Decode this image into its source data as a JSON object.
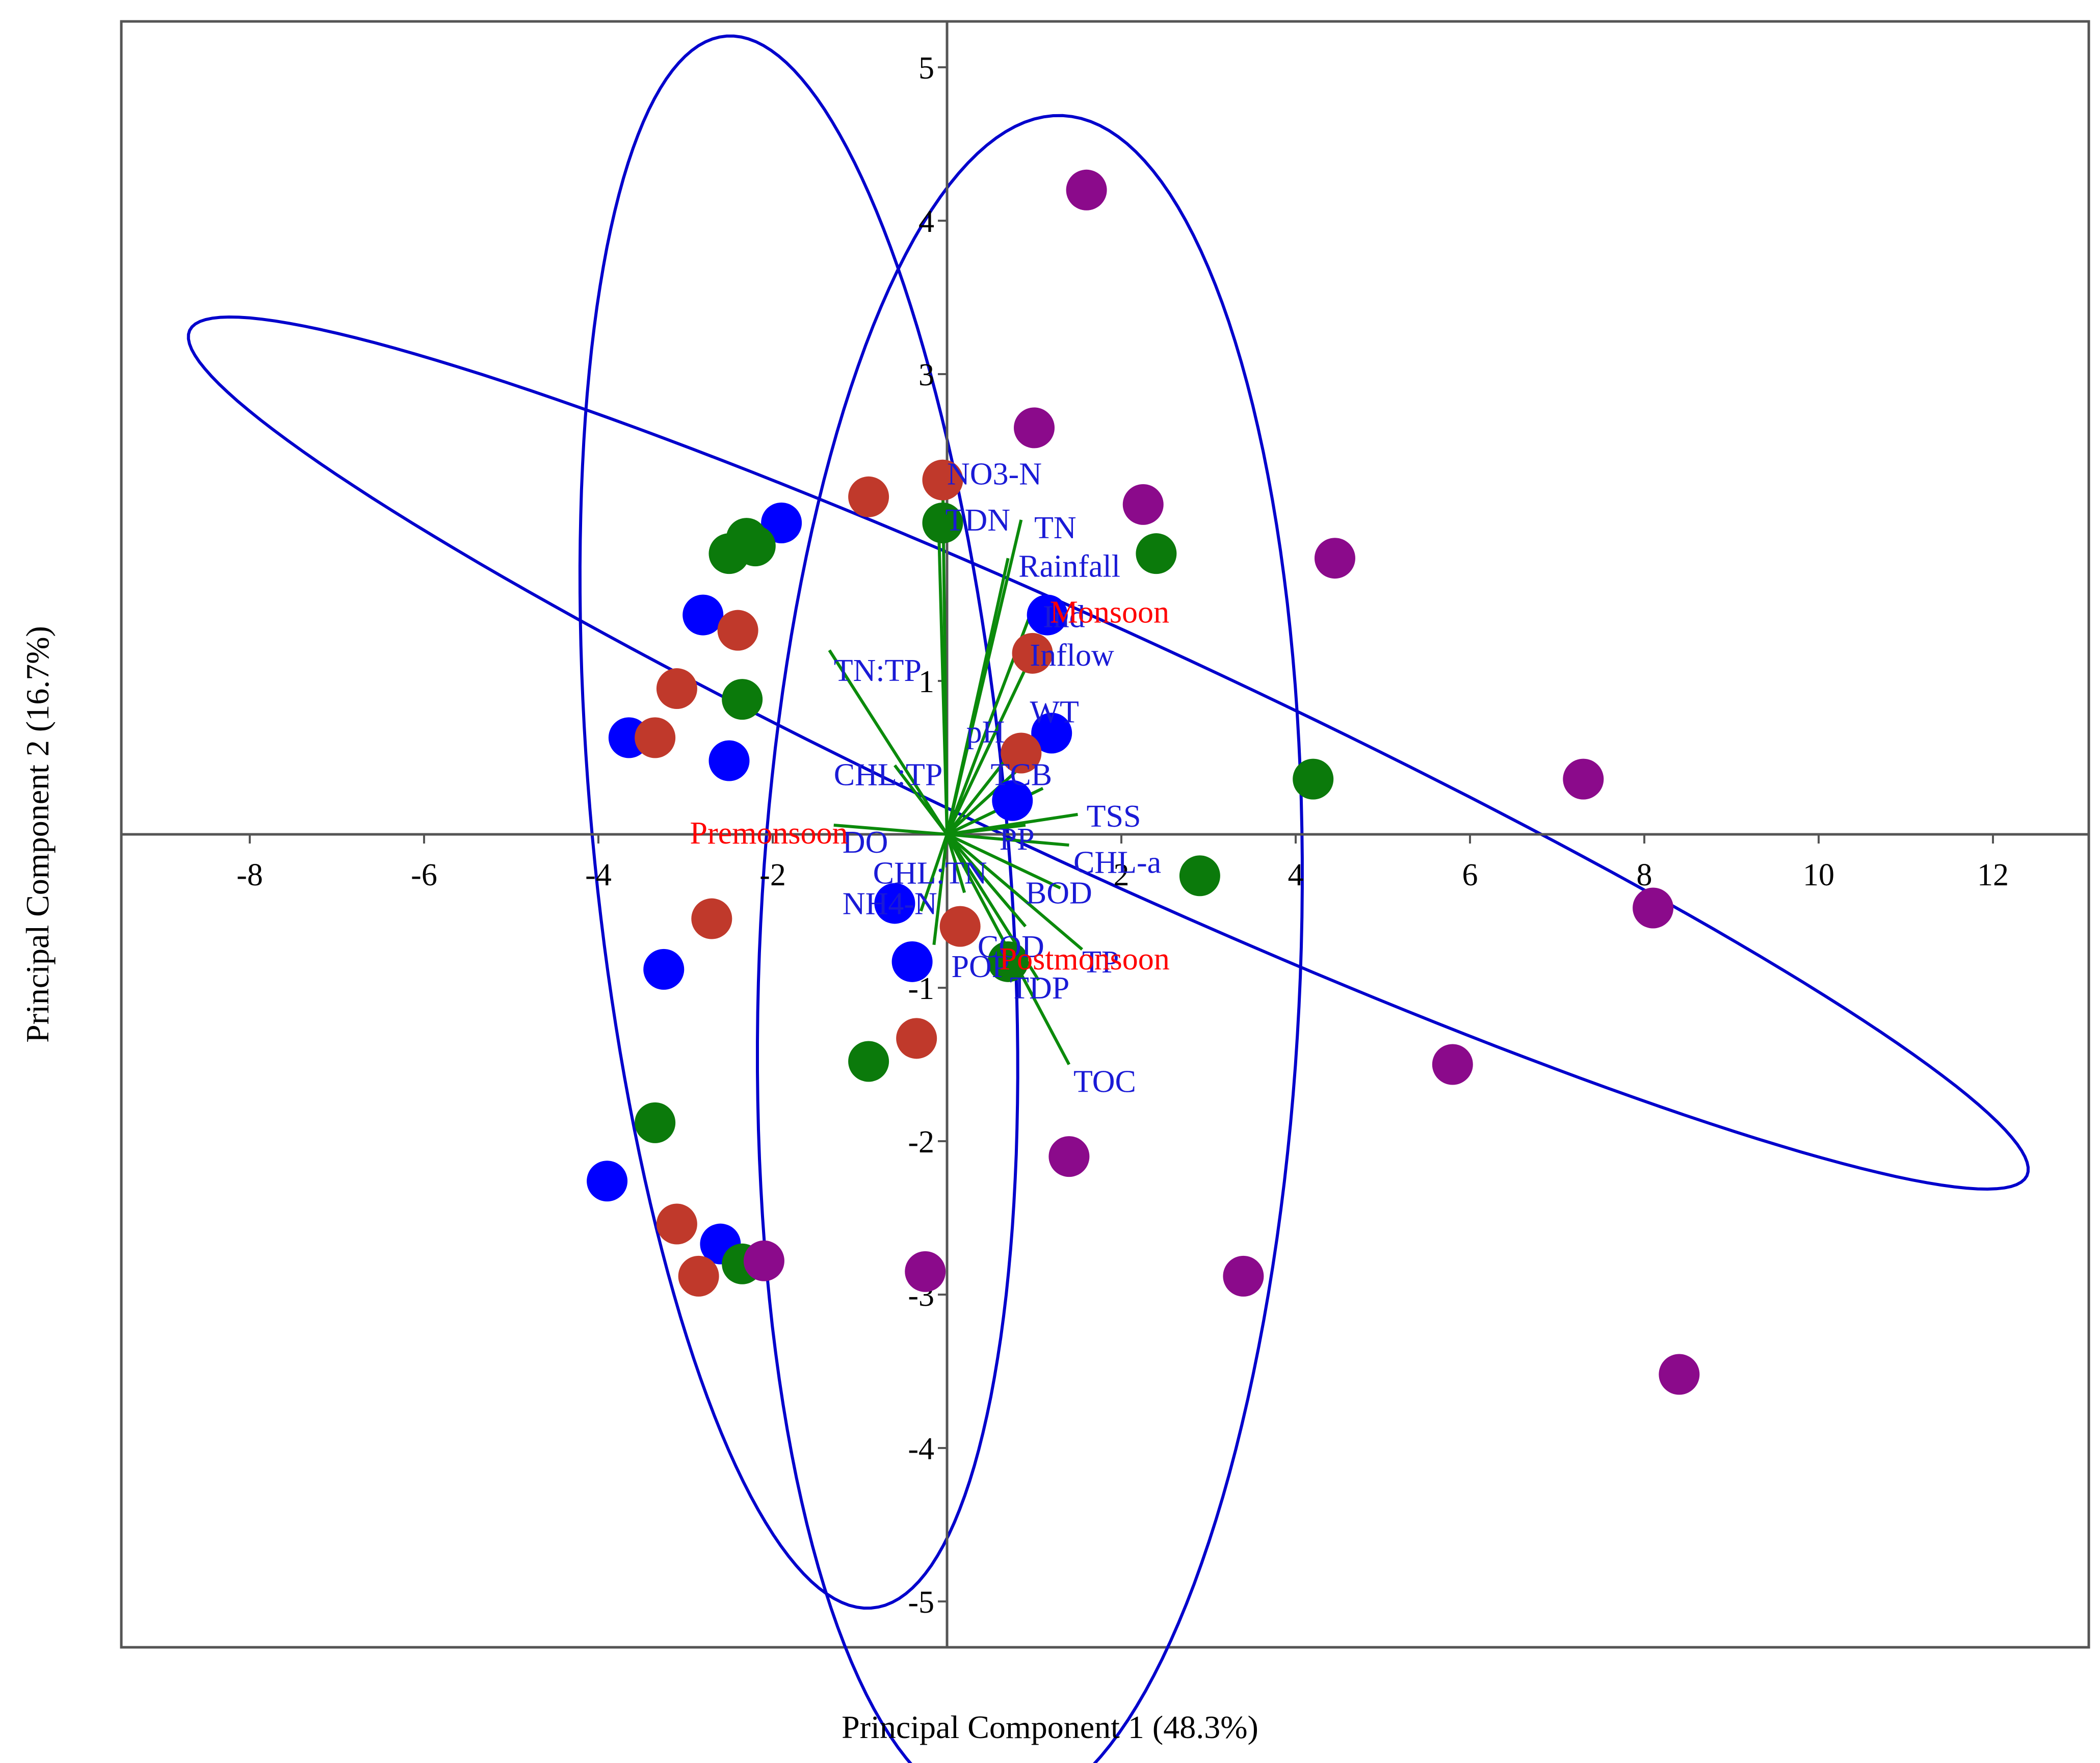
{
  "chart_data": {
    "type": "scatter",
    "title": "",
    "xlabel": "Principal Component 1 (48.3%)",
    "ylabel": "Principal Component 2 (16.7%)",
    "xlim": [
      -9.5,
      13.2
    ],
    "ylim": [
      -5.3,
      5.3
    ],
    "xticks": [
      -8,
      -6,
      -4,
      -2,
      2,
      4,
      6,
      8,
      10,
      12
    ],
    "yticks": [
      5,
      4,
      3,
      1,
      -1,
      -2,
      -3,
      -4,
      -5
    ],
    "grid": false,
    "colors": {
      "blue": "#0000ff",
      "red": "#c0392b",
      "green": "#0b7a0b",
      "purple": "#8b0a8b",
      "loading": "#0b8a0b",
      "ellipse": "#0000cc",
      "variable_label": "#1a1ad6",
      "season_label": "#ff0000"
    },
    "series": [
      {
        "color": "blue",
        "points": [
          [
            -1.9,
            2.03
          ],
          [
            -2.8,
            1.43
          ],
          [
            -3.65,
            0.63
          ],
          [
            -2.5,
            0.48
          ],
          [
            -0.6,
            -0.45
          ],
          [
            -3.25,
            -0.88
          ],
          [
            -0.4,
            -0.83
          ],
          [
            -3.9,
            -2.26
          ],
          [
            -2.6,
            -2.67
          ],
          [
            1.15,
            1.43
          ],
          [
            1.2,
            0.66
          ],
          [
            0.75,
            0.22
          ]
        ]
      },
      {
        "color": "red",
        "points": [
          [
            -0.9,
            2.2
          ],
          [
            -0.05,
            2.31
          ],
          [
            -2.4,
            1.33
          ],
          [
            -3.1,
            0.95
          ],
          [
            -3.35,
            0.63
          ],
          [
            0.98,
            1.18
          ],
          [
            0.85,
            0.53
          ],
          [
            -2.7,
            -0.55
          ],
          [
            0.15,
            -0.6
          ],
          [
            -0.35,
            -1.33
          ],
          [
            -3.1,
            -2.54
          ],
          [
            -2.85,
            -2.88
          ]
        ]
      },
      {
        "color": "green",
        "points": [
          [
            -2.3,
            1.93
          ],
          [
            -2.5,
            1.83
          ],
          [
            -2.2,
            1.88
          ],
          [
            -0.05,
            2.03
          ],
          [
            -2.35,
            0.88
          ],
          [
            2.4,
            1.83
          ],
          [
            4.2,
            0.36
          ],
          [
            2.9,
            -0.27
          ],
          [
            0.7,
            -0.83
          ],
          [
            -0.9,
            -1.48
          ],
          [
            -3.35,
            -1.88
          ],
          [
            -2.35,
            -2.8
          ]
        ]
      },
      {
        "color": "purple",
        "points": [
          [
            1.6,
            4.2
          ],
          [
            1.0,
            2.65
          ],
          [
            2.25,
            2.15
          ],
          [
            4.45,
            1.8
          ],
          [
            7.3,
            0.36
          ],
          [
            8.1,
            -0.48
          ],
          [
            5.8,
            -1.5
          ],
          [
            1.4,
            -2.1
          ],
          [
            3.4,
            -2.88
          ],
          [
            -0.25,
            -2.85
          ],
          [
            -2.1,
            -2.78
          ],
          [
            8.4,
            -3.52
          ]
        ]
      }
    ],
    "loadings": [
      {
        "label": "NO3-N",
        "end": [
          -0.05,
          2.35
        ]
      },
      {
        "label": "TDN",
        "end": [
          -0.1,
          2.1
        ]
      },
      {
        "label": "TN",
        "end": [
          0.85,
          2.05
        ]
      },
      {
        "label": "Rainfall",
        "end": [
          0.7,
          1.8
        ]
      },
      {
        "label": "Ind",
        "end": [
          1.0,
          1.5
        ]
      },
      {
        "label": "Inflow",
        "end": [
          1.0,
          1.2
        ]
      },
      {
        "label": "TN:TP",
        "end": [
          -1.35,
          1.2
        ]
      },
      {
        "label": "WT",
        "end": [
          1.35,
          0.7
        ]
      },
      {
        "label": "pH",
        "end": [
          0.9,
          0.65
        ]
      },
      {
        "label": "CHL:TP",
        "end": [
          -0.6,
          0.45
        ]
      },
      {
        "label": "TCB",
        "end": [
          1.1,
          0.3
        ]
      },
      {
        "label": "TSS",
        "end": [
          1.5,
          0.13
        ]
      },
      {
        "label": "PP",
        "end": [
          0.9,
          0.06
        ]
      },
      {
        "label": "CHL-a",
        "end": [
          1.4,
          -0.07
        ]
      },
      {
        "label": "DO",
        "end": [
          -1.3,
          0.06
        ]
      },
      {
        "label": "CHL:TN",
        "end": [
          0.2,
          -0.38
        ]
      },
      {
        "label": "BOD",
        "end": [
          1.3,
          -0.35
        ]
      },
      {
        "label": "NH4-N",
        "end": [
          -0.3,
          -0.5
        ]
      },
      {
        "label": "COD",
        "end": [
          0.9,
          -0.6
        ]
      },
      {
        "label": "TP",
        "end": [
          1.55,
          -0.75
        ]
      },
      {
        "label": "POP",
        "end": [
          -0.15,
          -0.72
        ]
      },
      {
        "label": "TDP",
        "end": [
          1.05,
          -0.95
        ]
      },
      {
        "label": "TOC",
        "end": [
          1.4,
          -1.5
        ]
      }
    ],
    "variable_labels": [
      {
        "text": "NO3-N",
        "at": [
          0.0,
          2.28
        ],
        "anchor": "start"
      },
      {
        "text": "TDN",
        "at": [
          -0.02,
          1.98
        ],
        "anchor": "start"
      },
      {
        "text": "TN",
        "at": [
          1.0,
          1.93
        ],
        "anchor": "start"
      },
      {
        "text": "Rainfall",
        "at": [
          0.82,
          1.68
        ],
        "anchor": "start"
      },
      {
        "text": "Ind",
        "at": [
          1.1,
          1.35
        ],
        "anchor": "start"
      },
      {
        "text": "Inflow",
        "at": [
          0.95,
          1.1
        ],
        "anchor": "start"
      },
      {
        "text": "TN:TP",
        "at": [
          -1.3,
          1.0
        ],
        "anchor": "start"
      },
      {
        "text": "WT",
        "at": [
          0.95,
          0.73
        ],
        "anchor": "start"
      },
      {
        "text": "pH",
        "at": [
          0.22,
          0.6
        ],
        "anchor": "start"
      },
      {
        "text": "CHL:TP",
        "at": [
          -1.3,
          0.32
        ],
        "anchor": "start"
      },
      {
        "text": "TCB",
        "at": [
          0.5,
          0.32
        ],
        "anchor": "start"
      },
      {
        "text": "TSS",
        "at": [
          1.6,
          0.05
        ],
        "anchor": "start"
      },
      {
        "text": "PP",
        "at": [
          0.6,
          -0.1
        ],
        "anchor": "start"
      },
      {
        "text": "CHL-a",
        "at": [
          1.45,
          -0.25
        ],
        "anchor": "start"
      },
      {
        "text": "DO",
        "at": [
          -1.2,
          -0.12
        ],
        "anchor": "start"
      },
      {
        "text": "CHL:TN",
        "at": [
          -0.85,
          -0.32
        ],
        "anchor": "start"
      },
      {
        "text": "BOD",
        "at": [
          0.9,
          -0.45
        ],
        "anchor": "start"
      },
      {
        "text": "NH4-N",
        "at": [
          -1.2,
          -0.52
        ],
        "anchor": "start"
      },
      {
        "text": "COD",
        "at": [
          0.35,
          -0.8
        ],
        "anchor": "start"
      },
      {
        "text": "TP",
        "at": [
          1.55,
          -0.9
        ],
        "anchor": "start"
      },
      {
        "text": "POP",
        "at": [
          0.05,
          -0.93
        ],
        "anchor": "start"
      },
      {
        "text": "TDP",
        "at": [
          0.72,
          -1.07
        ],
        "anchor": "start"
      },
      {
        "text": "TOC",
        "at": [
          1.45,
          -1.68
        ],
        "anchor": "start"
      }
    ],
    "season_labels": [
      {
        "text": "Monsoon",
        "at": [
          1.18,
          1.38
        ],
        "anchor": "start"
      },
      {
        "text": "Premonsoon",
        "at": [
          -2.95,
          -0.06
        ],
        "anchor": "start"
      },
      {
        "text": "Postmonsoon",
        "at": [
          0.6,
          -0.88
        ],
        "anchor": "start"
      }
    ],
    "ellipses": [
      {
        "center": [
          1.85,
          0.53
        ],
        "rx": 10.9,
        "ry": 0.82,
        "angle": -14.5
      },
      {
        "center": [
          -1.7,
          0.08
        ],
        "rx": 5.2,
        "ry": 2.35,
        "angle": -79
      },
      {
        "center": [
          0.95,
          -0.85
        ],
        "rx": 3.1,
        "ry": 5.55,
        "angle": -5
      }
    ]
  }
}
